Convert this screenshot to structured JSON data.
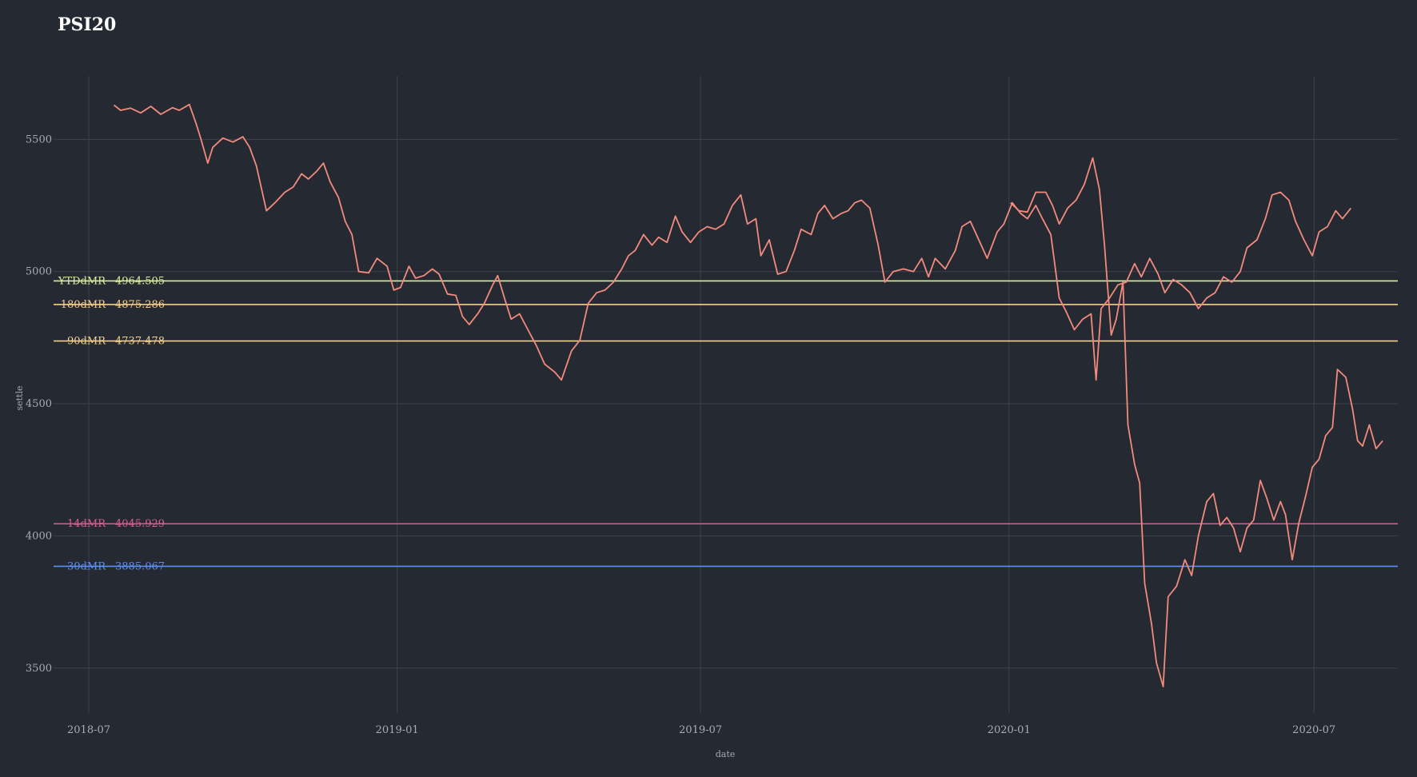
{
  "chart_data": {
    "type": "line",
    "title": "PSI20",
    "xlabel": "date",
    "ylabel": "settle",
    "x_ticks": [
      "2018-07",
      "2019-01",
      "2019-07",
      "2020-01",
      "2020-07"
    ],
    "y_ticks": [
      3500,
      4000,
      4500,
      5000,
      5500
    ],
    "xlim": [
      "2018-06-10",
      "2020-08-20"
    ],
    "ylim": [
      3330,
      5740
    ],
    "grid": true,
    "series": [
      {
        "color": "#f28b7d",
        "points": [
          [
            "2018-07-16",
            5630
          ],
          [
            "2018-07-20",
            5610
          ],
          [
            "2018-07-26",
            5618
          ],
          [
            "2018-08-01",
            5600
          ],
          [
            "2018-08-07",
            5625
          ],
          [
            "2018-08-13",
            5595
          ],
          [
            "2018-08-20",
            5620
          ],
          [
            "2018-08-24",
            5610
          ],
          [
            "2018-08-30",
            5632
          ],
          [
            "2018-09-03",
            5560
          ],
          [
            "2018-09-06",
            5500
          ],
          [
            "2018-09-10",
            5410
          ],
          [
            "2018-09-13",
            5470
          ],
          [
            "2018-09-19",
            5505
          ],
          [
            "2018-09-25",
            5490
          ],
          [
            "2018-10-01",
            5510
          ],
          [
            "2018-10-05",
            5470
          ],
          [
            "2018-10-09",
            5400
          ],
          [
            "2018-10-15",
            5230
          ],
          [
            "2018-10-20",
            5260
          ],
          [
            "2018-10-26",
            5300
          ],
          [
            "2018-10-31",
            5320
          ],
          [
            "2018-11-05",
            5370
          ],
          [
            "2018-11-09",
            5350
          ],
          [
            "2018-11-14",
            5380
          ],
          [
            "2018-11-18",
            5410
          ],
          [
            "2018-11-22",
            5340
          ],
          [
            "2018-11-27",
            5280
          ],
          [
            "2018-12-01",
            5190
          ],
          [
            "2018-12-05",
            5140
          ],
          [
            "2018-12-09",
            5000
          ],
          [
            "2018-12-15",
            4995
          ],
          [
            "2018-12-20",
            5050
          ],
          [
            "2018-12-26",
            5020
          ],
          [
            "2018-12-30",
            4930
          ],
          [
            "2019-01-03",
            4940
          ],
          [
            "2019-01-08",
            5020
          ],
          [
            "2019-01-12",
            4975
          ],
          [
            "2019-01-17",
            4985
          ],
          [
            "2019-01-22",
            5010
          ],
          [
            "2019-01-26",
            4990
          ],
          [
            "2019-01-31",
            4915
          ],
          [
            "2019-02-05",
            4910
          ],
          [
            "2019-02-09",
            4830
          ],
          [
            "2019-02-13",
            4800
          ],
          [
            "2019-02-18",
            4840
          ],
          [
            "2019-02-22",
            4880
          ],
          [
            "2019-02-27",
            4950
          ],
          [
            "2019-03-02",
            4985
          ],
          [
            "2019-03-06",
            4900
          ],
          [
            "2019-03-10",
            4820
          ],
          [
            "2019-03-15",
            4840
          ],
          [
            "2019-03-20",
            4780
          ],
          [
            "2019-03-25",
            4720
          ],
          [
            "2019-03-30",
            4650
          ],
          [
            "2019-04-05",
            4620
          ],
          [
            "2019-04-09",
            4590
          ],
          [
            "2019-04-15",
            4700
          ],
          [
            "2019-04-20",
            4740
          ],
          [
            "2019-04-25",
            4880
          ],
          [
            "2019-04-30",
            4920
          ],
          [
            "2019-05-05",
            4930
          ],
          [
            "2019-05-10",
            4960
          ],
          [
            "2019-05-15",
            5010
          ],
          [
            "2019-05-19",
            5060
          ],
          [
            "2019-05-23",
            5080
          ],
          [
            "2019-05-28",
            5140
          ],
          [
            "2019-06-02",
            5100
          ],
          [
            "2019-06-06",
            5130
          ],
          [
            "2019-06-11",
            5110
          ],
          [
            "2019-06-16",
            5210
          ],
          [
            "2019-06-20",
            5150
          ],
          [
            "2019-06-25",
            5110
          ],
          [
            "2019-06-30",
            5150
          ],
          [
            "2019-07-05",
            5170
          ],
          [
            "2019-07-10",
            5160
          ],
          [
            "2019-07-15",
            5180
          ],
          [
            "2019-07-20",
            5250
          ],
          [
            "2019-07-25",
            5290
          ],
          [
            "2019-07-29",
            5180
          ],
          [
            "2019-08-03",
            5200
          ],
          [
            "2019-08-06",
            5060
          ],
          [
            "2019-08-11",
            5120
          ],
          [
            "2019-08-16",
            4990
          ],
          [
            "2019-08-21",
            5000
          ],
          [
            "2019-08-26",
            5080
          ],
          [
            "2019-08-30",
            5160
          ],
          [
            "2019-09-05",
            5140
          ],
          [
            "2019-09-09",
            5220
          ],
          [
            "2019-09-13",
            5250
          ],
          [
            "2019-09-18",
            5200
          ],
          [
            "2019-09-23",
            5220
          ],
          [
            "2019-09-27",
            5230
          ],
          [
            "2019-10-01",
            5260
          ],
          [
            "2019-10-05",
            5270
          ],
          [
            "2019-10-10",
            5240
          ],
          [
            "2019-10-15",
            5100
          ],
          [
            "2019-10-19",
            4960
          ],
          [
            "2019-10-24",
            5000
          ],
          [
            "2019-10-30",
            5010
          ],
          [
            "2019-11-05",
            5000
          ],
          [
            "2019-11-10",
            5050
          ],
          [
            "2019-11-14",
            4980
          ],
          [
            "2019-11-18",
            5050
          ],
          [
            "2019-11-24",
            5010
          ],
          [
            "2019-11-30",
            5080
          ],
          [
            "2019-12-04",
            5170
          ],
          [
            "2019-12-09",
            5190
          ],
          [
            "2019-12-14",
            5120
          ],
          [
            "2019-12-19",
            5050
          ],
          [
            "2019-12-25",
            5150
          ],
          [
            "2019-12-29",
            5180
          ],
          [
            "2020-01-03",
            5260
          ],
          [
            "2020-01-08",
            5220
          ],
          [
            "2020-01-12",
            5200
          ],
          [
            "2020-01-17",
            5250
          ],
          [
            "2020-01-21",
            5200
          ],
          [
            "2020-01-26",
            5140
          ],
          [
            "2020-01-31",
            4900
          ],
          [
            "2020-02-04",
            4850
          ],
          [
            "2020-02-09",
            4780
          ],
          [
            "2020-02-14",
            4820
          ],
          [
            "2020-02-19",
            4840
          ],
          [
            "2020-02-22",
            4590
          ],
          [
            "2020-02-25",
            4860
          ],
          [
            "2020-03-01",
            4900
          ],
          [
            "2020-03-06",
            4950
          ],
          [
            "2020-03-11",
            4960
          ],
          [
            "2020-03-16",
            5030
          ],
          [
            "2020-03-20",
            4980
          ],
          [
            "2020-03-25",
            5050
          ],
          [
            "2020-03-30",
            4990
          ],
          [
            "2020-04-03",
            4920
          ],
          [
            "2020-04-08",
            4970
          ],
          [
            "2020-04-13",
            4950
          ],
          [
            "2020-04-18",
            4920
          ],
          [
            "2020-04-23",
            4860
          ],
          [
            "2020-04-28",
            4900
          ],
          [
            "2020-05-03",
            4920
          ],
          [
            "2020-05-08",
            4980
          ],
          [
            "2020-05-13",
            4960
          ],
          [
            "2020-05-18",
            5000
          ],
          [
            "2020-05-22",
            5090
          ],
          [
            "2020-05-28",
            5120
          ],
          [
            "2020-06-02",
            5200
          ],
          [
            "2020-06-06",
            5290
          ],
          [
            "2020-06-11",
            5300
          ],
          [
            "2020-06-16",
            5270
          ],
          [
            "2020-06-20",
            5190
          ],
          [
            "2020-06-25",
            5120
          ],
          [
            "2020-06-30",
            5060
          ],
          [
            "2020-07-04",
            5150
          ],
          [
            "2020-07-09",
            5170
          ],
          [
            "2020-07-14",
            5230
          ],
          [
            "2020-07-18",
            5200
          ],
          [
            "2020-07-23",
            5240
          ]
        ]
      },
      {
        "color": "#f28b7d",
        "points": [
          [
            "2020-01-02",
            5260
          ],
          [
            "2020-01-07",
            5230
          ],
          [
            "2020-01-12",
            5225
          ],
          [
            "2020-01-17",
            5300
          ],
          [
            "2020-01-23",
            5300
          ],
          [
            "2020-01-27",
            5250
          ],
          [
            "2020-01-31",
            5180
          ],
          [
            "2020-02-05",
            5240
          ],
          [
            "2020-02-10",
            5270
          ],
          [
            "2020-02-15",
            5330
          ],
          [
            "2020-02-20",
            5430
          ],
          [
            "2020-02-24",
            5310
          ],
          [
            "2020-02-27",
            5100
          ],
          [
            "2020-03-02",
            4760
          ],
          [
            "2020-03-05",
            4820
          ],
          [
            "2020-03-09",
            4960
          ],
          [
            "2020-03-12",
            4420
          ],
          [
            "2020-03-16",
            4270
          ],
          [
            "2020-03-19",
            4200
          ],
          [
            "2020-03-22",
            3820
          ],
          [
            "2020-03-26",
            3670
          ],
          [
            "2020-03-29",
            3520
          ],
          [
            "2020-04-02",
            3430
          ],
          [
            "2020-04-05",
            3770
          ],
          [
            "2020-04-10",
            3810
          ],
          [
            "2020-04-15",
            3910
          ],
          [
            "2020-04-19",
            3850
          ],
          [
            "2020-04-23",
            4000
          ],
          [
            "2020-04-28",
            4130
          ],
          [
            "2020-05-02",
            4160
          ],
          [
            "2020-05-06",
            4040
          ],
          [
            "2020-05-10",
            4070
          ],
          [
            "2020-05-14",
            4030
          ],
          [
            "2020-05-18",
            3940
          ],
          [
            "2020-05-22",
            4030
          ],
          [
            "2020-05-26",
            4060
          ],
          [
            "2020-05-30",
            4210
          ],
          [
            "2020-06-03",
            4140
          ],
          [
            "2020-06-07",
            4060
          ],
          [
            "2020-06-11",
            4130
          ],
          [
            "2020-06-14",
            4080
          ],
          [
            "2020-06-18",
            3910
          ],
          [
            "2020-06-22",
            4050
          ],
          [
            "2020-06-26",
            4150
          ],
          [
            "2020-06-30",
            4260
          ],
          [
            "2020-07-04",
            4290
          ],
          [
            "2020-07-08",
            4380
          ],
          [
            "2020-07-12",
            4410
          ],
          [
            "2020-07-15",
            4630
          ],
          [
            "2020-07-20",
            4600
          ],
          [
            "2020-07-24",
            4480
          ],
          [
            "2020-07-27",
            4360
          ],
          [
            "2020-07-30",
            4340
          ],
          [
            "2020-08-03",
            4420
          ],
          [
            "2020-08-07",
            4330
          ],
          [
            "2020-08-11",
            4360
          ]
        ]
      }
    ],
    "reference_lines": [
      {
        "label": "YTDdMR",
        "value": 4964.505,
        "value_text": "4964.505",
        "color": "#d9ef9a"
      },
      {
        "label": "180dMR",
        "value": 4875.286,
        "value_text": "4875.286",
        "color": "#f7cf8c"
      },
      {
        "label": "90dMR",
        "value": 4737.478,
        "value_text": "4737.478",
        "color": "#f5cf8a"
      },
      {
        "label": "14dMR",
        "value": 4045.929,
        "value_text": "4045.929",
        "color": "#e05a94"
      },
      {
        "label": "30dMR",
        "value": 3885.067,
        "value_text": "3885.067",
        "color": "#5b8ff0"
      }
    ],
    "colors": {
      "background": "#252932",
      "grid": "#3c414c",
      "text": "#a8acb3",
      "title": "#ffffff"
    }
  }
}
